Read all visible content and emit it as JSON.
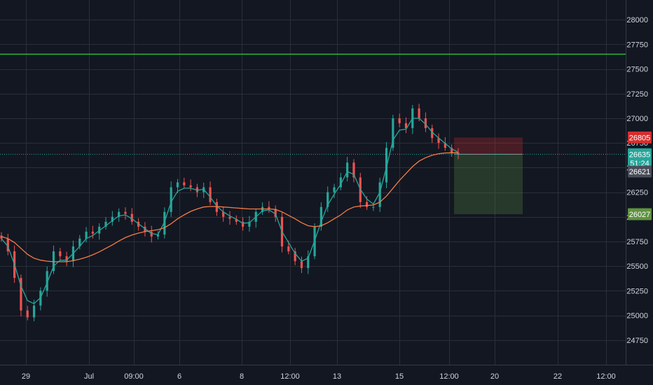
{
  "chart_data": {
    "type": "candlestick",
    "ylim": [
      24500,
      28200
    ],
    "y_ticks": [
      24750,
      25000,
      25250,
      25500,
      25750,
      26000,
      26250,
      26500,
      26750,
      27000,
      27250,
      27500,
      27750,
      28000
    ],
    "y_tick_labels": [
      "24750",
      "25000",
      "25250",
      "25500",
      "25750",
      "26000",
      "26250",
      "26500",
      "26750",
      "27000",
      "27250",
      "27500",
      "27750",
      "28000"
    ],
    "x_tick_labels": [
      "29",
      "Jul",
      "09:00",
      "6",
      "8",
      "12:00",
      "13",
      "15",
      "12:00",
      "20",
      "22",
      "12:00"
    ],
    "grid": true,
    "horizontal_line": {
      "value": 27650,
      "color": "#2fbf3a"
    },
    "price_badges": [
      {
        "label": "26805",
        "value": 26805,
        "color": "#d32f2f"
      },
      {
        "label": "26635",
        "value": 26635,
        "color": "#26a69a"
      },
      {
        "label": "51:24",
        "value": 26545,
        "color": "#26a69a"
      },
      {
        "label": "26621",
        "value": 26460,
        "color": "#4a4e5a"
      },
      {
        "label": "26027",
        "value": 26027,
        "color": "#5f9340"
      }
    ],
    "position_tool": {
      "entry": 26635,
      "stop": 26805,
      "target": 26027,
      "stop_color": "#d32f2f",
      "target_color": "#5f9340"
    },
    "series": [
      {
        "type": "candles",
        "up_color": "#26a69a",
        "down_color": "#ef5350",
        "points": [
          25780,
          25650,
          25380,
          25050,
          24980,
          25100,
          25250,
          25450,
          25650,
          25600,
          25550,
          25700,
          25780,
          25850,
          25830,
          25900,
          25950,
          26000,
          26050,
          26030,
          25950,
          25900,
          25850,
          25800,
          25820,
          26050,
          26300,
          26350,
          26320,
          26300,
          26250,
          26300,
          26150,
          26050,
          26000,
          25980,
          25950,
          25900,
          25950,
          26050,
          26100,
          26080,
          26000,
          25700,
          25650,
          25550,
          25480,
          25600,
          25900,
          26100,
          26250,
          26300,
          26400,
          26550,
          26400,
          26150,
          26100,
          26100,
          26350,
          26700,
          27000,
          26950,
          26900,
          27100,
          27000,
          26900,
          26800,
          26750,
          26700,
          26650,
          26635
        ]
      },
      {
        "type": "line",
        "name": "fast",
        "color": "#26a69a",
        "points": [
          25780,
          25700,
          25520,
          25300,
          25150,
          25120,
          25180,
          25330,
          25500,
          25560,
          25560,
          25630,
          25700,
          25780,
          25810,
          25860,
          25910,
          25960,
          26010,
          26020,
          25980,
          25930,
          25880,
          25830,
          25820,
          25950,
          26150,
          26260,
          26290,
          26290,
          26270,
          26280,
          26200,
          26110,
          26050,
          26010,
          25975,
          25935,
          25940,
          26000,
          26060,
          26070,
          26030,
          25850,
          25740,
          25630,
          25550,
          25580,
          25760,
          25950,
          26120,
          26230,
          26330,
          26460,
          26430,
          26280,
          26180,
          26130,
          26250,
          26500,
          26780,
          26880,
          26890,
          27000,
          27000,
          26940,
          26860,
          26800,
          26745,
          26690,
          26655
        ]
      },
      {
        "type": "line",
        "name": "slow",
        "color": "#f57c44",
        "points": [
          25800,
          25780,
          25740,
          25680,
          25620,
          25580,
          25560,
          25550,
          25545,
          25545,
          25545,
          25555,
          25570,
          25590,
          25615,
          25645,
          25680,
          25715,
          25755,
          25790,
          25815,
          25835,
          25850,
          25860,
          25870,
          25890,
          25930,
          25980,
          26020,
          26055,
          26080,
          26100,
          26105,
          26105,
          26100,
          26095,
          26090,
          26085,
          26080,
          26080,
          26080,
          26080,
          26075,
          26050,
          26015,
          25980,
          25940,
          25910,
          25900,
          25910,
          25940,
          25980,
          26020,
          26070,
          26100,
          26110,
          26115,
          26120,
          26150,
          26210,
          26290,
          26370,
          26440,
          26510,
          26565,
          26600,
          26625,
          26640,
          26648,
          26650,
          26650
        ]
      }
    ]
  }
}
